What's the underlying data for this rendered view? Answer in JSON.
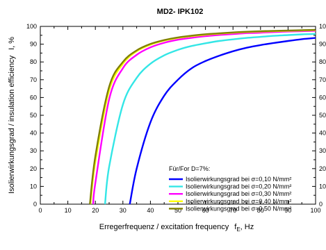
{
  "chart_data": {
    "type": "line",
    "title": "MD2- IPK102",
    "xlabel": "Erregerfrequenz / excitation frequency",
    "xlabel_symbol": "f",
    "xlabel_subscript": "E",
    "xlabel_unit": ", Hz",
    "ylabel": "Isolierwirkungsgrad / insulation efficiency",
    "ylabel_symbol": "I, %",
    "xlim": [
      0,
      100
    ],
    "ylim": [
      0,
      100
    ],
    "xticks": [
      "0",
      "10",
      "20",
      "30",
      "40",
      "50",
      "60",
      "70",
      "80",
      "90",
      "100"
    ],
    "yticks": [
      "0",
      "10",
      "20",
      "30",
      "40",
      "50",
      "60",
      "70",
      "80",
      "90",
      "100"
    ],
    "grid": false,
    "right_axis_mirrored": true,
    "legend_position": "bottom-right",
    "legend_title": "Für/For D=7%:",
    "series": [
      {
        "name": "Isolierwirkungsgrad bei σ=0,10 N/mm²",
        "color": "#0000ff",
        "x": [
          32.5,
          35,
          40,
          45,
          50,
          55,
          60,
          65,
          70,
          75,
          80,
          85,
          90,
          95,
          100
        ],
        "y": [
          0,
          20,
          46,
          61,
          70,
          76.5,
          80.5,
          83.5,
          86,
          88,
          89.5,
          90.7,
          91.8,
          92.8,
          93.5
        ]
      },
      {
        "name": "Isolierwirkungsgrad bei σ=0,20 N/mm²",
        "color": "#33e6e6",
        "x": [
          23.5,
          25,
          30,
          35,
          40,
          45,
          50,
          55,
          60,
          65,
          70,
          75,
          80,
          85,
          90,
          95,
          100
        ],
        "y": [
          0,
          21,
          56,
          71,
          79,
          83.7,
          86.8,
          89,
          90.5,
          91.8,
          92.7,
          93.5,
          94.1,
          94.7,
          95.1,
          95.5,
          95.8
        ]
      },
      {
        "name": "Isolierwirkungsgrad bei σ=0,30 N/mm²",
        "color": "#ff00ff",
        "x": [
          19.2,
          20,
          25,
          30,
          35,
          40,
          45,
          50,
          55,
          60,
          65,
          70,
          75,
          80,
          85,
          90,
          95,
          100
        ],
        "y": [
          0,
          12,
          59,
          76.5,
          84,
          88.2,
          90.8,
          92.5,
          93.6,
          94.5,
          95.2,
          95.7,
          96.2,
          96.5,
          96.8,
          97.1,
          97.3,
          97.5
        ]
      },
      {
        "name": "Isolierwirkungsgrad bei σ=0,40 N/mm²",
        "color": "#ffff00",
        "x": [
          18.2,
          20,
          25,
          30,
          35,
          40,
          45,
          50,
          55,
          60,
          65,
          70,
          75,
          80,
          85,
          90,
          95,
          100
        ],
        "y": [
          0,
          24,
          64,
          79,
          86,
          89.7,
          92,
          93.5,
          94.5,
          95.3,
          95.9,
          96.4,
          96.8,
          97.1,
          97.3,
          97.5,
          97.7,
          97.9
        ]
      },
      {
        "name": "Isolierwirkungsgrad bei σ=0,50 N/mm²",
        "color": "#808000",
        "x": [
          18,
          20,
          25,
          30,
          35,
          40,
          45,
          50,
          55,
          60,
          65,
          70,
          75,
          80,
          85,
          90,
          95,
          100
        ],
        "y": [
          0,
          27,
          66,
          80,
          86.5,
          90.1,
          92.3,
          93.8,
          94.8,
          95.6,
          96.1,
          96.6,
          97,
          97.3,
          97.5,
          97.7,
          97.9,
          98.1
        ]
      }
    ]
  }
}
